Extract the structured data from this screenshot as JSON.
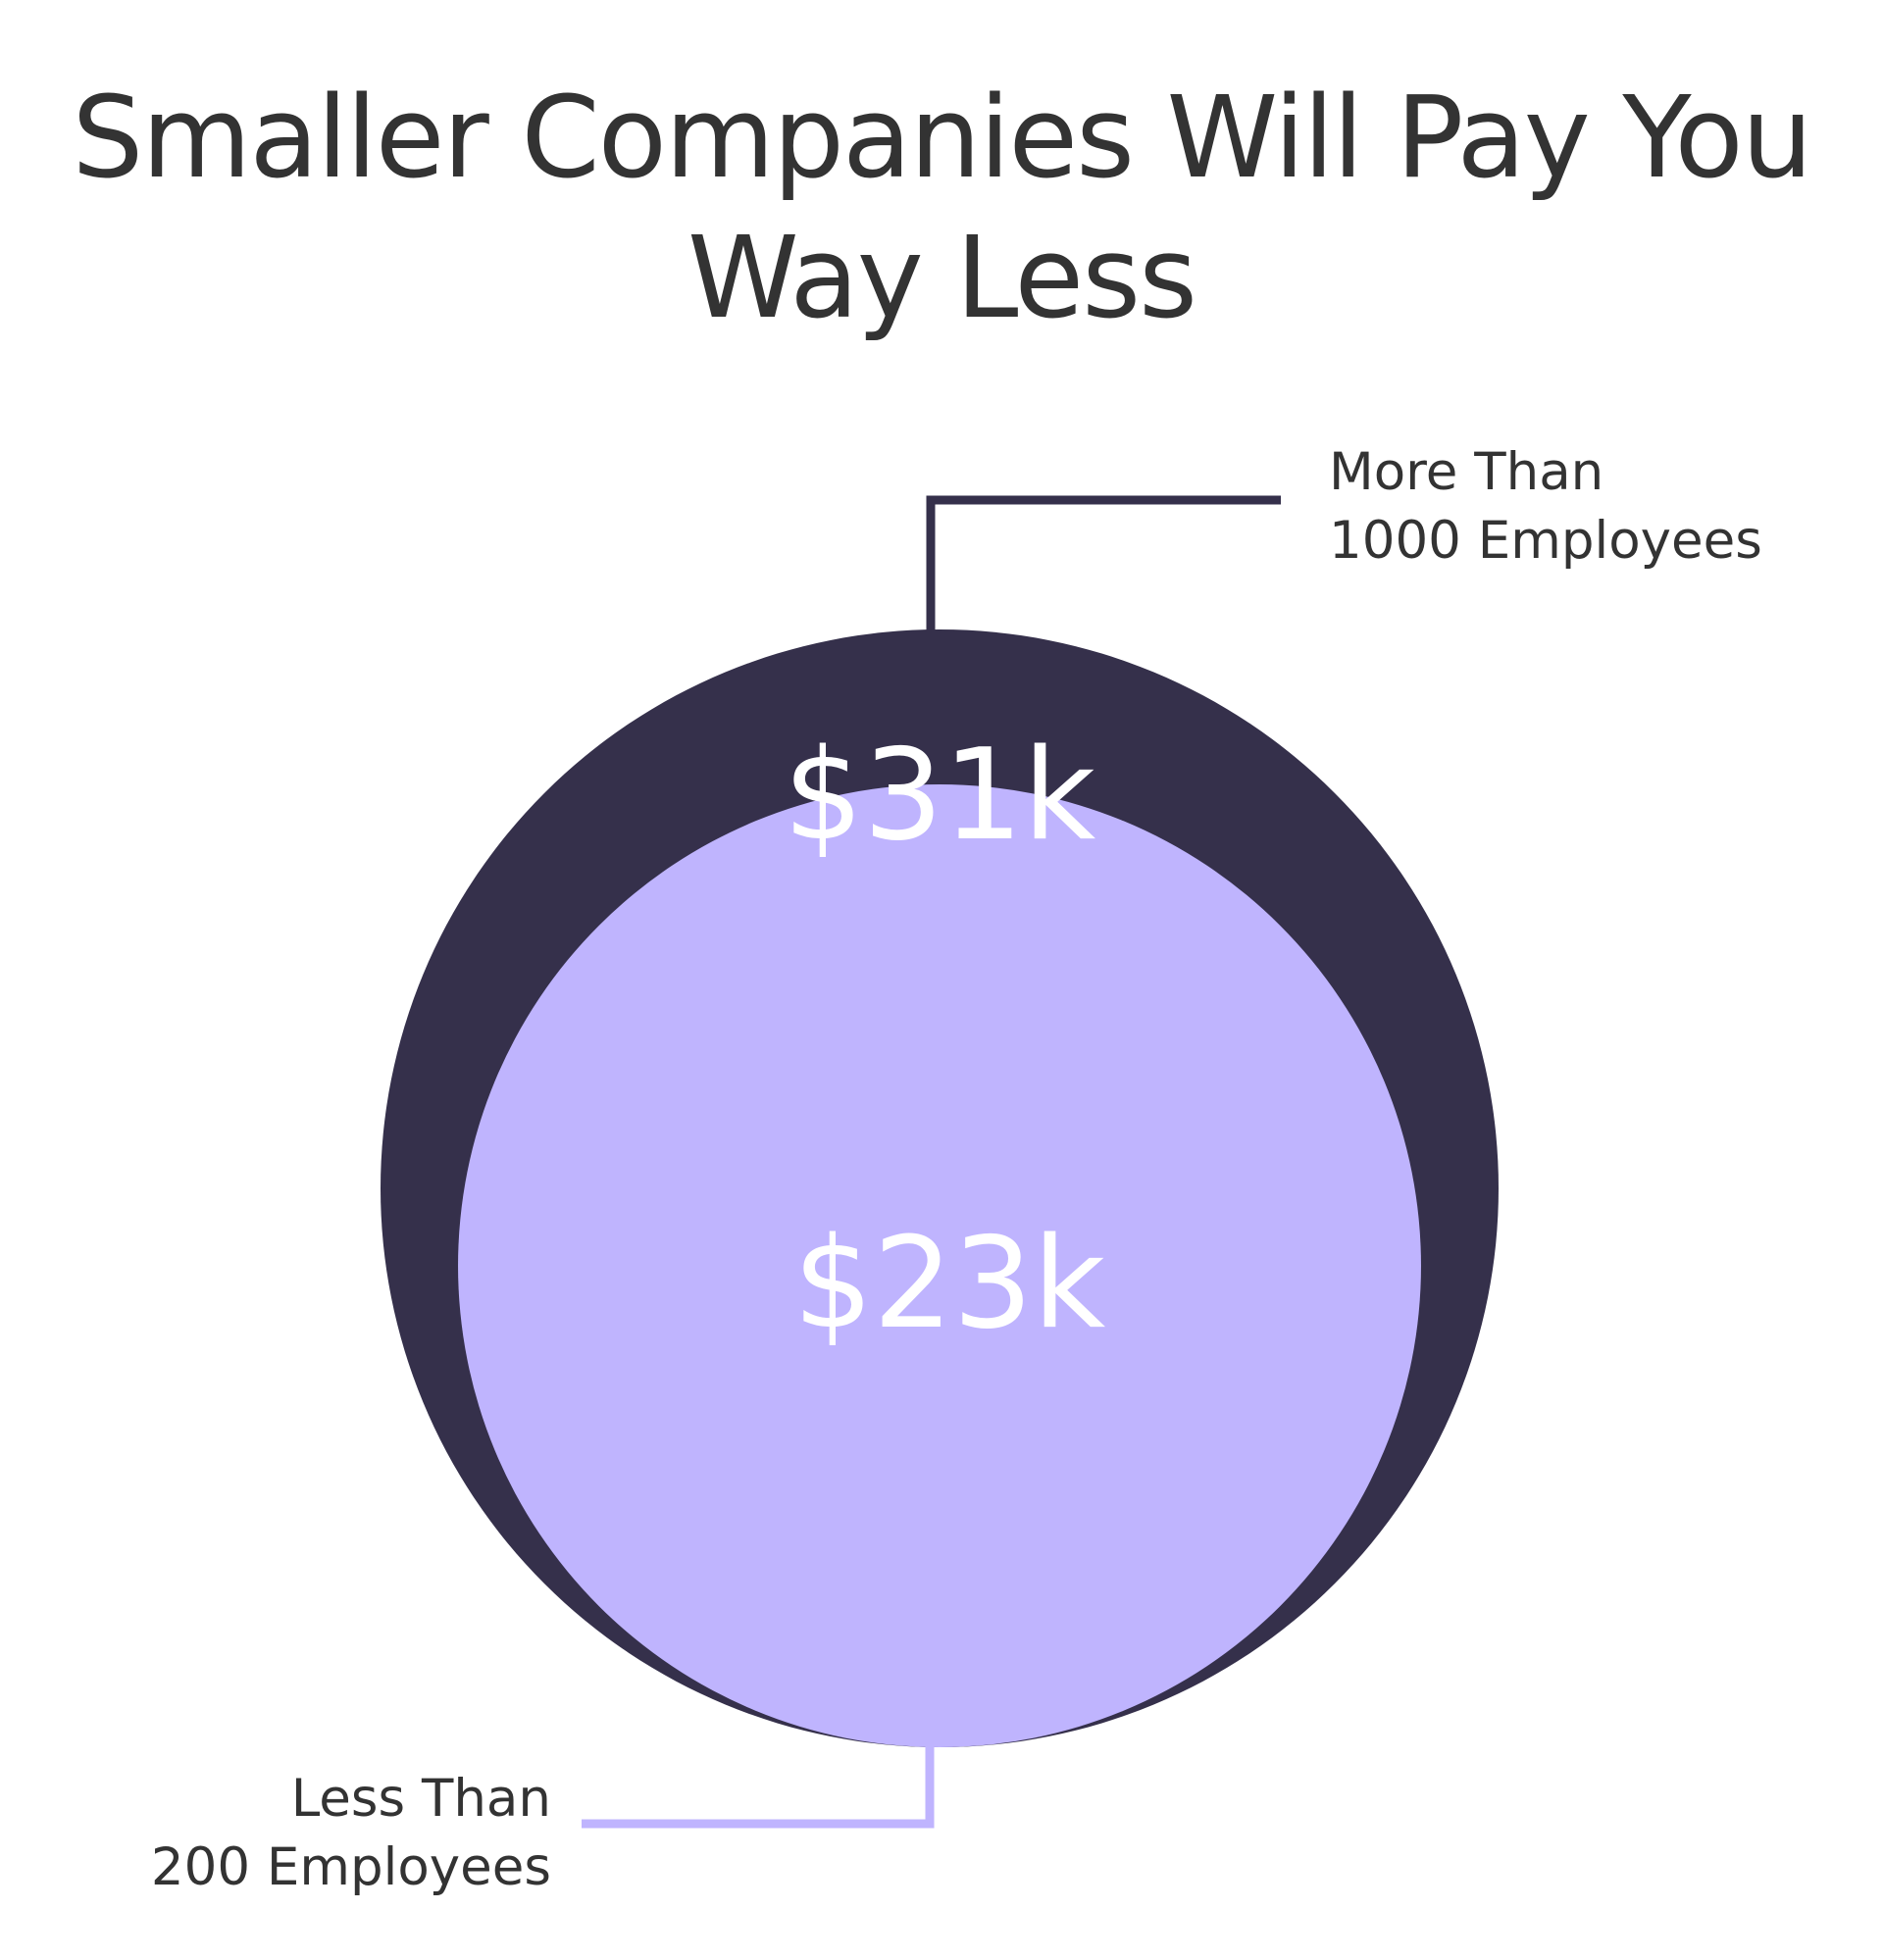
{
  "chart_data": {
    "type": "nested-circle",
    "title": "Smaller Companies Will Pay You Way Less",
    "categories": [
      "More Than 1000 Employees",
      "Less Than 200 Employees"
    ],
    "series": [
      {
        "name": "More Than 1000 Employees",
        "label_lines": [
          "More Than",
          "1000 Employees"
        ],
        "value": 31,
        "value_label": "$31k",
        "color": "#35304b"
      },
      {
        "name": "Less Than 200 Employees",
        "label_lines": [
          "Less Than",
          "200 Employees"
        ],
        "value": 23,
        "value_label": "$23k",
        "color": "#bfb4fe"
      }
    ],
    "unit": "$k",
    "value_label_color": "#ffffff",
    "text_color": "#333333",
    "background": "#ffffff"
  }
}
